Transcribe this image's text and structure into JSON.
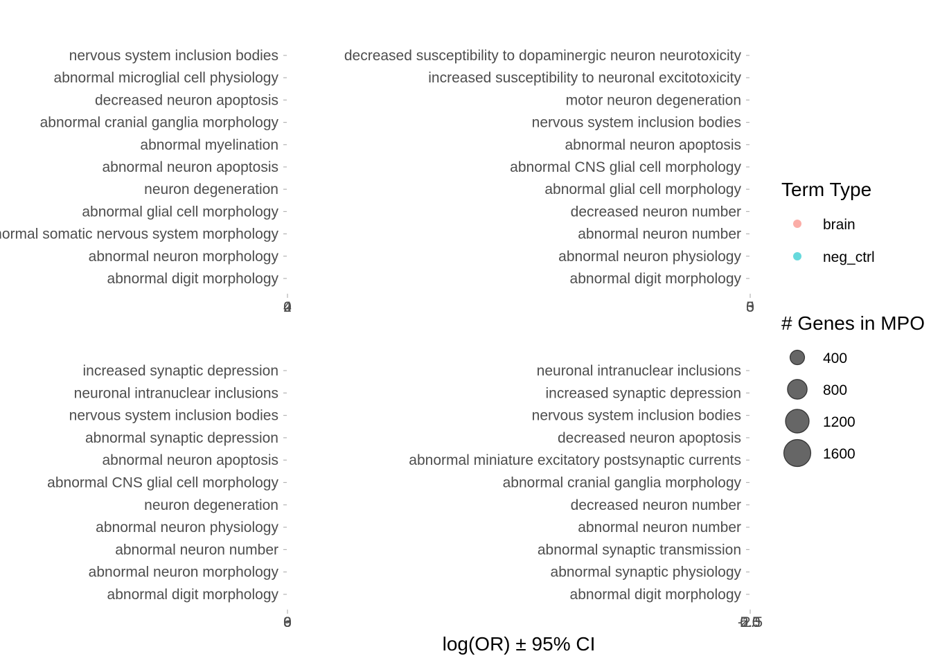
{
  "chart_data": {
    "type": "scatter",
    "xlabel": "log(OR) ± 95% CI",
    "legend": {
      "position": "right",
      "color_title": "Term Type",
      "color_items": [
        {
          "label": "brain",
          "color": "#F8766D"
        },
        {
          "label": "neg_ctrl",
          "color": "#00BFC4"
        }
      ],
      "size_title": "# Genes in MPO",
      "size_items": [
        {
          "label": "400",
          "value": 400
        },
        {
          "label": "800",
          "value": 800
        },
        {
          "label": "1200",
          "value": 1200
        },
        {
          "label": "1600",
          "value": 1600
        }
      ]
    },
    "panels": [
      {
        "id": "top-left",
        "terms": [
          "nervous system inclusion bodies",
          "abnormal microglial cell physiology",
          "decreased neuron apoptosis",
          "abnormal cranial ganglia morphology",
          "abnormal myelination",
          "abnormal neuron apoptosis",
          "neuron degeneration",
          "abnormal glial cell morphology",
          "abnormal somatic nervous system morphology",
          "abnormal neuron morphology",
          "abnormal digit morphology"
        ],
        "x_ticks": [
          "0",
          "2",
          "4"
        ],
        "points": []
      },
      {
        "id": "top-right",
        "terms": [
          "decreased susceptibility to dopaminergic neuron neurotoxicity",
          "increased susceptibility to neuronal excitotoxicity",
          "motor neuron degeneration",
          "nervous system inclusion bodies",
          "abnormal neuron apoptosis",
          "abnormal CNS glial cell morphology",
          "abnormal glial cell morphology",
          "decreased neuron number",
          "abnormal neuron number",
          "abnormal neuron physiology",
          "abnormal digit morphology"
        ],
        "x_ticks": [
          "0",
          "3",
          "5"
        ],
        "points": []
      },
      {
        "id": "bottom-left",
        "terms": [
          "increased synaptic depression",
          "neuronal intranuclear inclusions",
          "nervous system inclusion bodies",
          "abnormal synaptic depression",
          "abnormal neuron apoptosis",
          "abnormal CNS glial cell morphology",
          "neuron degeneration",
          "abnormal neuron physiology",
          "abnormal neuron number",
          "abnormal neuron morphology",
          "abnormal digit morphology"
        ],
        "x_ticks": [
          "0",
          "3",
          "6",
          "9"
        ],
        "points": []
      },
      {
        "id": "bottom-right",
        "terms": [
          "neuronal intranuclear inclusions",
          "increased synaptic depression",
          "nervous system inclusion bodies",
          "decreased neuron apoptosis",
          "abnormal miniature excitatory postsynaptic currents",
          "abnormal cranial ganglia morphology",
          "decreased neuron number",
          "abnormal neuron number",
          "abnormal synaptic transmission",
          "abnormal synaptic physiology",
          "abnormal digit morphology"
        ],
        "x_ticks": [
          "-2.5",
          "0.0",
          "2.5",
          "5.0"
        ],
        "points": []
      }
    ]
  }
}
